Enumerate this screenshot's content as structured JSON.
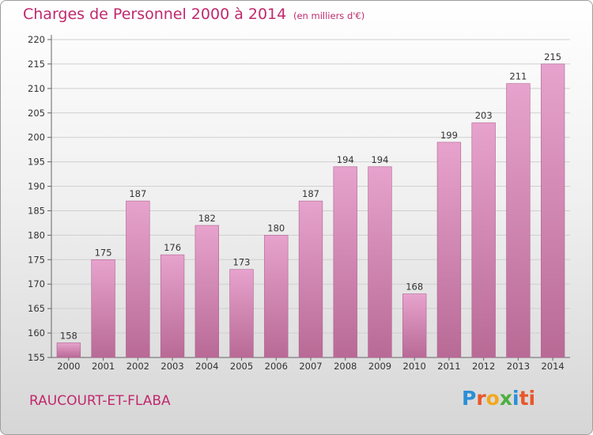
{
  "header": {
    "title": "Charges de Personnel 2000 à 2014",
    "subtitle": "(en milliers d'€)"
  },
  "footer": {
    "commune": "RAUCOURT-ET-FLABA",
    "logo_letters": [
      "P",
      "r",
      "o",
      "x",
      "i",
      "ti"
    ]
  },
  "colors": {
    "accent": "#c0296d",
    "bar_top": "#e7a3cd",
    "bar_bottom": "#b86a95",
    "grid": "#cfcfcf"
  },
  "chart_data": {
    "type": "bar",
    "title": "Charges de Personnel 2000 à 2014",
    "subtitle": "(en milliers d'€)",
    "xlabel": "",
    "ylabel": "",
    "categories": [
      "2000",
      "2001",
      "2002",
      "2003",
      "2004",
      "2005",
      "2006",
      "2007",
      "2008",
      "2009",
      "2010",
      "2011",
      "2012",
      "2013",
      "2014"
    ],
    "values": [
      158,
      175,
      187,
      176,
      182,
      173,
      180,
      187,
      194,
      194,
      168,
      199,
      203,
      211,
      215
    ],
    "ylim": [
      155,
      220
    ],
    "yticks": [
      155,
      160,
      165,
      170,
      175,
      180,
      185,
      190,
      195,
      200,
      205,
      210,
      215,
      220
    ],
    "grid": true,
    "data_labels": true
  }
}
